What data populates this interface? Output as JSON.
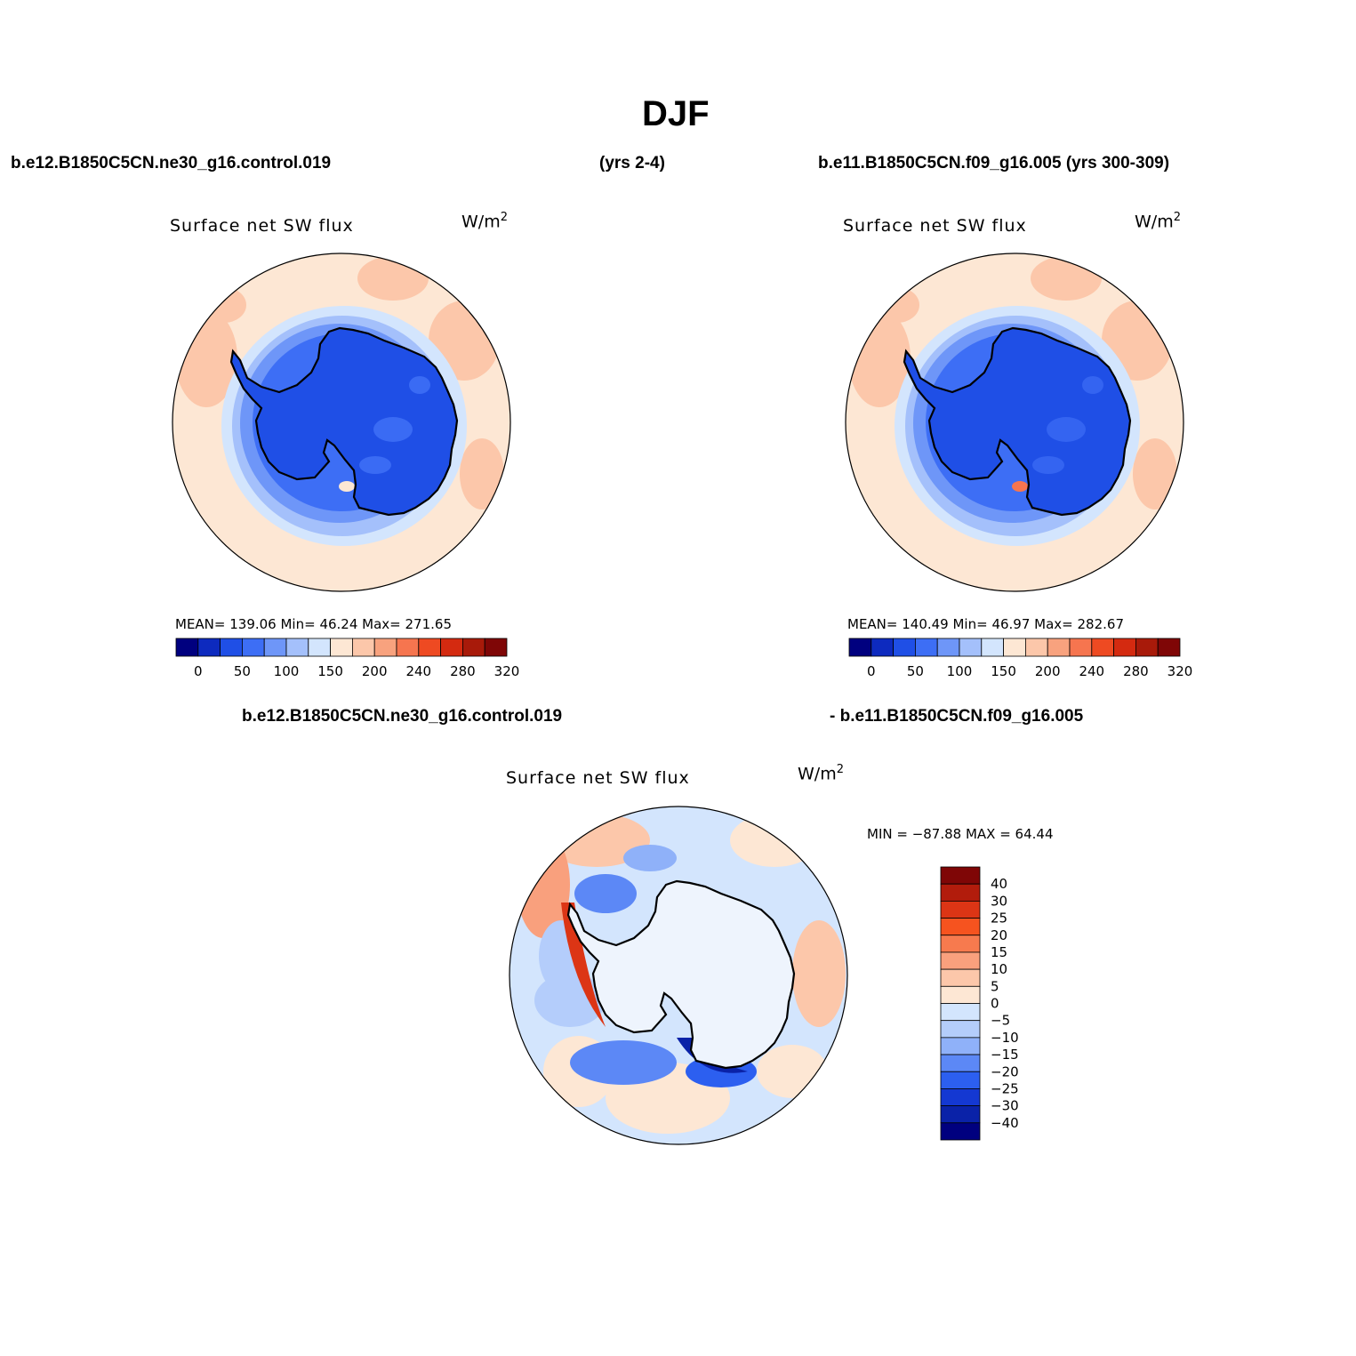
{
  "figure": {
    "title": "DJF",
    "header_left": "b.e12.B1850C5CN.ne30_g16.control.019",
    "header_middle": "(yrs 2-4)",
    "header_right": "b.e11.B1850C5CN.f09_g16.005 (yrs 300-309)",
    "diff_left": "b.e12.B1850C5CN.ne30_g16.control.019",
    "diff_right": "- b.e11.B1850C5CN.f09_g16.005"
  },
  "panels": [
    {
      "variable": "Surface net SW flux",
      "units_base": "W/m",
      "units_exp": "2",
      "stats": "MEAN= 139.06   Min=   46.24   Max= 271.65"
    },
    {
      "variable": "Surface net SW flux",
      "units_base": "W/m",
      "units_exp": "2",
      "stats": "MEAN= 140.49   Min=   46.97   Max= 282.67"
    },
    {
      "variable": "Surface net SW flux",
      "units_base": "W/m",
      "units_exp": "2",
      "stats": "MIN = −87.88 MAX =   64.44"
    }
  ],
  "abs_colorbar": {
    "labels": [
      "0",
      "50",
      "100",
      "150",
      "200",
      "240",
      "280",
      "320"
    ],
    "colors": [
      "#00007f",
      "#0d2abf",
      "#1f4fe6",
      "#3d6ef5",
      "#6e96f8",
      "#a4c0fb",
      "#d3e5fd",
      "#fde7d4",
      "#fcc7aa",
      "#f8a27e",
      "#f6754f",
      "#ee4a22",
      "#d42a10",
      "#a81a0a",
      "#7f0606"
    ]
  },
  "diff_colorbar": {
    "labels": [
      "40",
      "30",
      "25",
      "20",
      "15",
      "10",
      "5",
      "0",
      "−5",
      "−10",
      "−15",
      "−20",
      "−25",
      "−30",
      "−40"
    ],
    "colors": [
      "#7f0606",
      "#b21c0c",
      "#dc3515",
      "#f6531f",
      "#f77a4e",
      "#f9a07d",
      "#fcc7aa",
      "#fde7d4",
      "#d3e5fd",
      "#b4cdfb",
      "#8fb1f9",
      "#5c88f6",
      "#2c5ff0",
      "#1438d2",
      "#0a22a8",
      "#00007f"
    ]
  },
  "chart_data": [
    {
      "type": "heatmap",
      "title": "Surface net SW flux",
      "units": "W/m2",
      "projection": "south polar stereographic",
      "mean": 139.06,
      "min": 46.24,
      "max": 271.65,
      "levels": [
        0,
        25,
        50,
        75,
        100,
        125,
        150,
        175,
        200,
        220,
        240,
        260,
        280,
        300,
        320
      ]
    },
    {
      "type": "heatmap",
      "title": "Surface net SW flux",
      "units": "W/m2",
      "projection": "south polar stereographic",
      "mean": 140.49,
      "min": 46.97,
      "max": 282.67,
      "levels": [
        0,
        25,
        50,
        75,
        100,
        125,
        150,
        175,
        200,
        220,
        240,
        260,
        280,
        300,
        320
      ]
    },
    {
      "type": "heatmap",
      "title": "Surface net SW flux",
      "units": "W/m2",
      "projection": "south polar stereographic",
      "min": -87.88,
      "max": 64.44,
      "levels": [
        -40,
        -30,
        -25,
        -20,
        -15,
        -10,
        -5,
        0,
        5,
        10,
        15,
        20,
        25,
        30,
        40
      ]
    }
  ]
}
